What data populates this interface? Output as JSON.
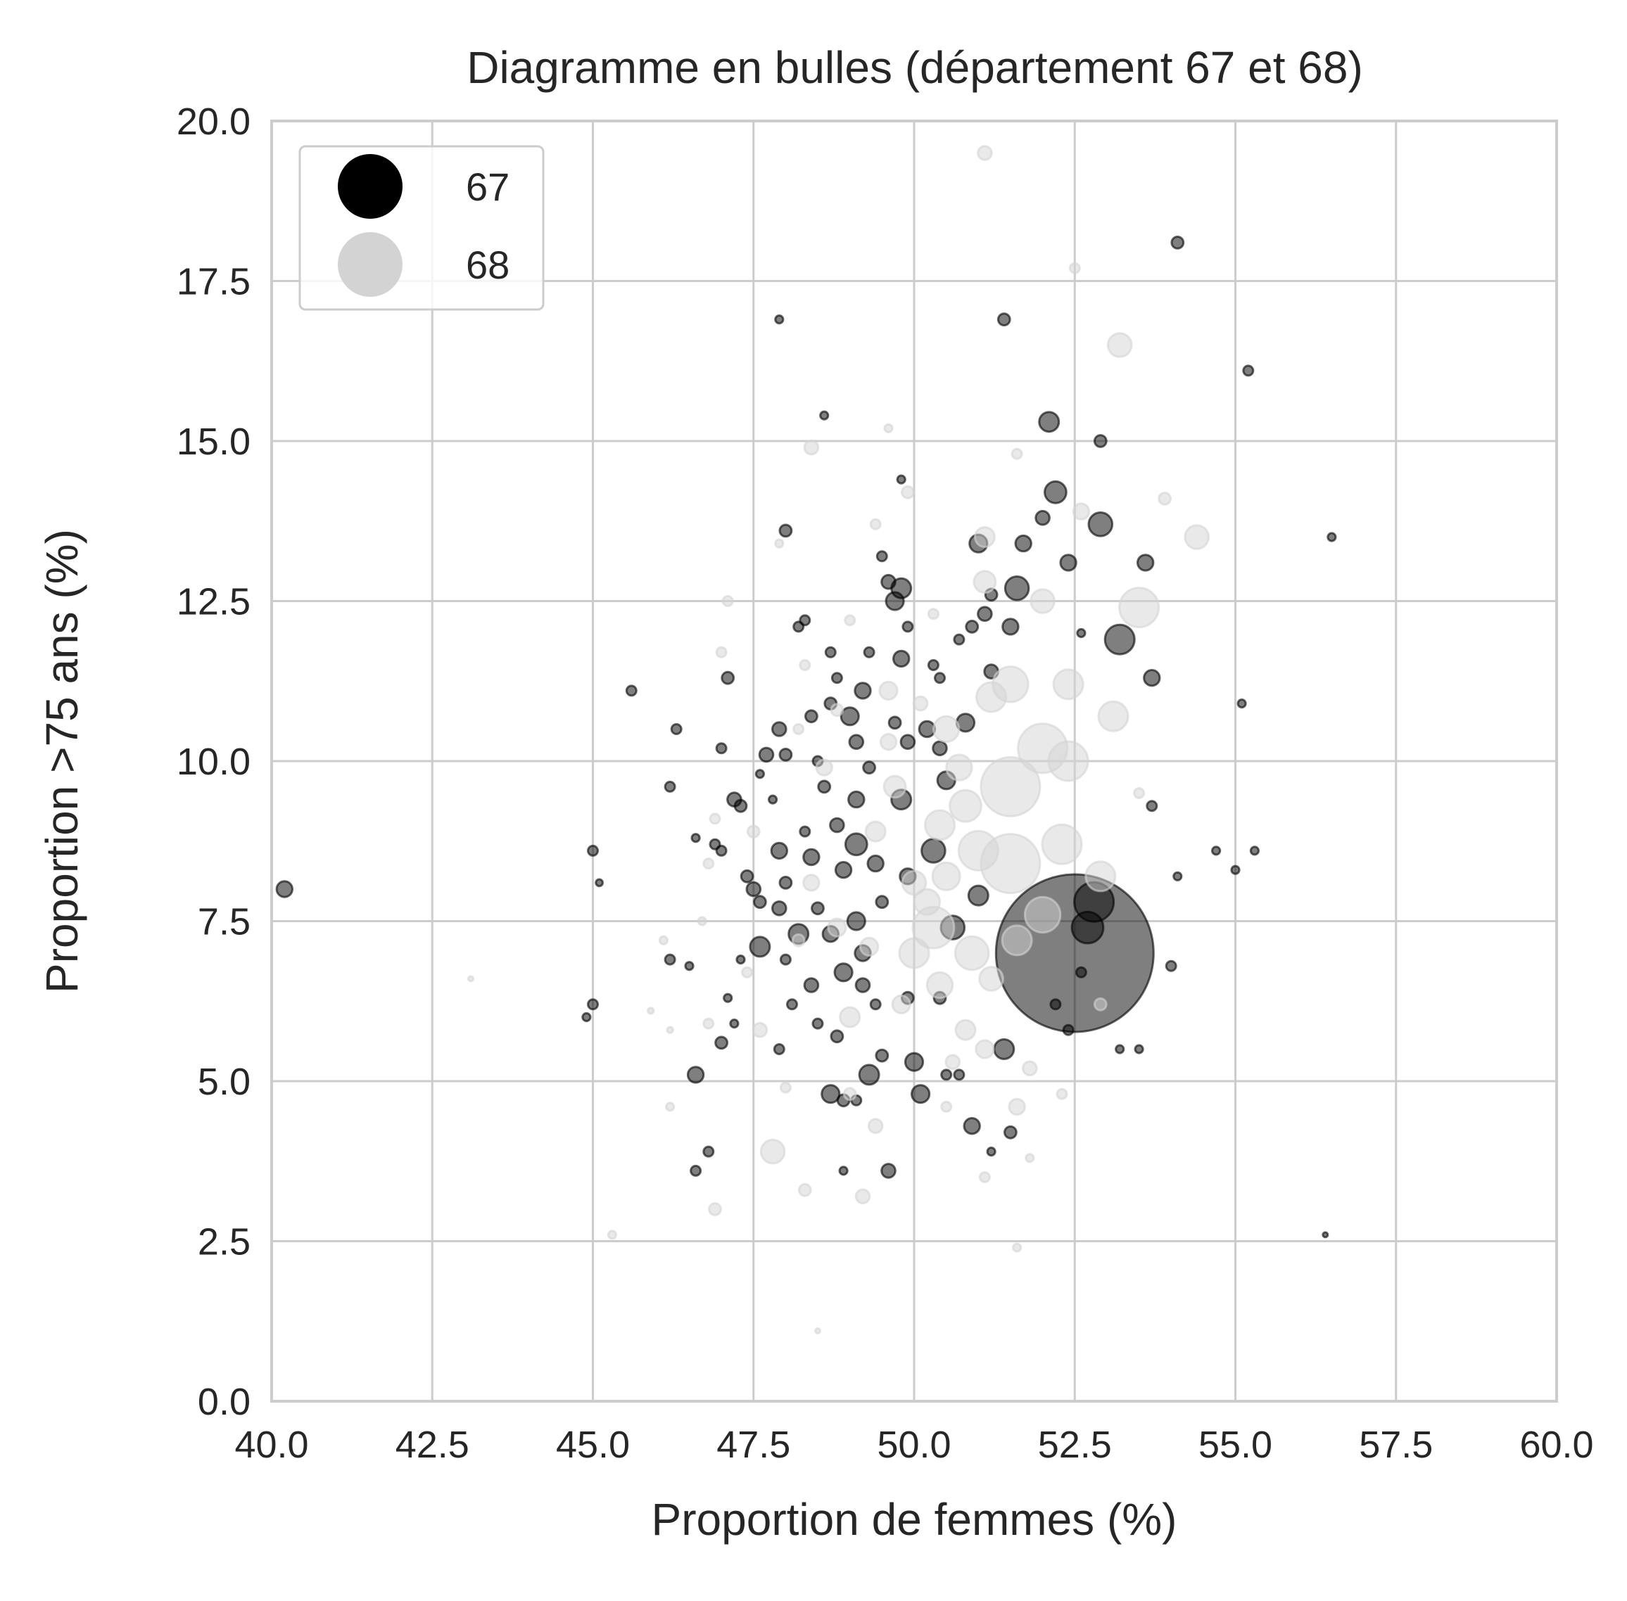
{
  "chart_data": {
    "type": "scatter",
    "title": "Diagramme en bulles (département 67 et 68)",
    "xlabel": "Proportion de femmes (%)",
    "ylabel": "Proportion >75 ans (%)",
    "xlim": [
      40.0,
      60.0
    ],
    "ylim": [
      0.0,
      20.0
    ],
    "xticks": [
      "40.0",
      "42.5",
      "45.0",
      "47.5",
      "50.0",
      "52.5",
      "55.0",
      "57.5",
      "60.0"
    ],
    "yticks": [
      "0.0",
      "2.5",
      "5.0",
      "7.5",
      "10.0",
      "12.5",
      "15.0",
      "17.5",
      "20.0"
    ],
    "grid": true,
    "legend_position": "top-left",
    "bubble_size_legend": false,
    "series": [
      {
        "name": "67",
        "color": "#000000",
        "opacity": 0.5,
        "points": [
          [
            40.2,
            8.0,
            1.6
          ],
          [
            45.0,
            8.6,
            1.0
          ],
          [
            45.1,
            8.1,
            0.7
          ],
          [
            45.0,
            6.2,
            1.0
          ],
          [
            44.9,
            6.0,
            0.8
          ],
          [
            45.6,
            11.1,
            1.0
          ],
          [
            46.2,
            9.6,
            1.0
          ],
          [
            46.3,
            10.5,
            1.0
          ],
          [
            46.2,
            6.9,
            1.0
          ],
          [
            46.5,
            6.8,
            0.8
          ],
          [
            46.6,
            8.8,
            0.8
          ],
          [
            46.6,
            3.6,
            1.0
          ],
          [
            46.6,
            5.1,
            1.6
          ],
          [
            46.8,
            3.9,
            1.0
          ],
          [
            46.9,
            8.7,
            1.0
          ],
          [
            47.0,
            8.6,
            1.0
          ],
          [
            47.0,
            10.2,
            1.0
          ],
          [
            47.1,
            11.3,
            1.2
          ],
          [
            47.2,
            9.4,
            1.4
          ],
          [
            47.3,
            9.3,
            1.2
          ],
          [
            47.1,
            6.3,
            0.8
          ],
          [
            47.2,
            5.9,
            0.8
          ],
          [
            47.0,
            5.6,
            1.2
          ],
          [
            47.3,
            6.9,
            0.8
          ],
          [
            47.4,
            8.2,
            1.2
          ],
          [
            47.5,
            8.0,
            1.4
          ],
          [
            47.6,
            7.8,
            1.2
          ],
          [
            47.6,
            7.1,
            2.0
          ],
          [
            47.7,
            10.1,
            1.4
          ],
          [
            47.6,
            9.8,
            0.8
          ],
          [
            47.9,
            16.9,
            0.8
          ],
          [
            48.0,
            13.6,
            1.2
          ],
          [
            47.9,
            10.5,
            1.4
          ],
          [
            48.0,
            10.1,
            1.2
          ],
          [
            47.8,
            9.4,
            0.8
          ],
          [
            47.9,
            8.6,
            1.6
          ],
          [
            48.0,
            8.1,
            1.2
          ],
          [
            47.9,
            7.7,
            1.4
          ],
          [
            48.0,
            6.9,
            1.0
          ],
          [
            47.9,
            5.5,
            1.0
          ],
          [
            48.1,
            6.2,
            1.0
          ],
          [
            48.2,
            7.3,
            2.0
          ],
          [
            48.2,
            12.1,
            1.0
          ],
          [
            48.3,
            12.2,
            1.0
          ],
          [
            48.4,
            10.7,
            1.2
          ],
          [
            48.5,
            10.0,
            1.0
          ],
          [
            48.6,
            9.6,
            1.2
          ],
          [
            48.4,
            8.5,
            1.6
          ],
          [
            48.3,
            8.9,
            1.0
          ],
          [
            48.5,
            7.7,
            1.2
          ],
          [
            48.4,
            6.5,
            1.4
          ],
          [
            48.5,
            5.9,
            1.0
          ],
          [
            48.6,
            15.4,
            0.8
          ],
          [
            48.7,
            11.7,
            1.0
          ],
          [
            48.8,
            11.3,
            1.0
          ],
          [
            48.7,
            10.9,
            1.2
          ],
          [
            48.8,
            9.0,
            1.4
          ],
          [
            48.9,
            8.3,
            1.6
          ],
          [
            48.7,
            7.3,
            1.6
          ],
          [
            48.9,
            6.7,
            1.8
          ],
          [
            48.8,
            5.7,
            1.2
          ],
          [
            48.7,
            4.8,
            1.8
          ],
          [
            48.9,
            4.7,
            1.2
          ],
          [
            48.9,
            3.6,
            0.8
          ],
          [
            49.0,
            10.7,
            1.8
          ],
          [
            49.1,
            10.3,
            1.4
          ],
          [
            49.1,
            9.4,
            1.6
          ],
          [
            49.1,
            8.7,
            2.2
          ],
          [
            49.1,
            7.5,
            1.8
          ],
          [
            49.2,
            7.0,
            1.6
          ],
          [
            49.2,
            6.5,
            1.4
          ],
          [
            49.1,
            4.7,
            1.0
          ],
          [
            49.2,
            11.1,
            1.6
          ],
          [
            49.3,
            11.7,
            1.0
          ],
          [
            49.3,
            9.9,
            1.2
          ],
          [
            49.4,
            8.4,
            1.6
          ],
          [
            49.5,
            7.8,
            1.2
          ],
          [
            49.4,
            6.2,
            1.0
          ],
          [
            49.3,
            5.1,
            2.0
          ],
          [
            49.5,
            5.4,
            1.2
          ],
          [
            49.6,
            3.6,
            1.4
          ],
          [
            49.6,
            12.8,
            1.4
          ],
          [
            49.7,
            12.5,
            1.8
          ],
          [
            49.5,
            13.2,
            1.0
          ],
          [
            49.8,
            14.4,
            0.8
          ],
          [
            49.8,
            12.7,
            2.0
          ],
          [
            49.9,
            12.1,
            1.0
          ],
          [
            49.8,
            11.6,
            1.6
          ],
          [
            49.7,
            10.6,
            1.2
          ],
          [
            49.9,
            10.3,
            1.4
          ],
          [
            49.8,
            9.4,
            2.0
          ],
          [
            49.9,
            8.2,
            1.6
          ],
          [
            49.9,
            6.3,
            1.2
          ],
          [
            50.0,
            5.3,
            1.8
          ],
          [
            50.1,
            4.8,
            1.8
          ],
          [
            50.3,
            11.5,
            1.0
          ],
          [
            50.4,
            11.3,
            1.0
          ],
          [
            50.2,
            10.5,
            1.6
          ],
          [
            50.4,
            10.2,
            1.4
          ],
          [
            50.5,
            9.7,
            1.8
          ],
          [
            50.4,
            6.3,
            1.2
          ],
          [
            50.5,
            5.1,
            1.0
          ],
          [
            50.7,
            11.9,
            1.0
          ],
          [
            50.9,
            12.1,
            1.2
          ],
          [
            50.8,
            10.6,
            1.8
          ],
          [
            50.7,
            5.1,
            1.0
          ],
          [
            50.9,
            4.3,
            1.6
          ],
          [
            51.0,
            13.4,
            1.8
          ],
          [
            51.1,
            12.3,
            1.4
          ],
          [
            51.2,
            12.6,
            1.2
          ],
          [
            51.2,
            11.4,
            1.4
          ],
          [
            51.2,
            3.9,
            0.8
          ],
          [
            51.4,
            16.9,
            1.2
          ],
          [
            51.5,
            12.1,
            1.6
          ],
          [
            51.6,
            12.7,
            2.4
          ],
          [
            51.7,
            13.4,
            1.6
          ],
          [
            51.4,
            5.5,
            2.0
          ],
          [
            51.5,
            4.2,
            1.2
          ],
          [
            52.0,
            13.8,
            1.4
          ],
          [
            52.2,
            14.2,
            2.2
          ],
          [
            52.1,
            15.3,
            2.0
          ],
          [
            52.2,
            6.2,
            1.0
          ],
          [
            52.4,
            13.1,
            1.6
          ],
          [
            52.4,
            5.8,
            1.0
          ],
          [
            52.6,
            12.0,
            0.8
          ],
          [
            52.6,
            6.7,
            1.0
          ],
          [
            52.9,
            13.7,
            2.4
          ],
          [
            52.9,
            15.0,
            1.2
          ],
          [
            53.2,
            11.9,
            3.0
          ],
          [
            53.6,
            13.1,
            1.6
          ],
          [
            53.7,
            11.3,
            1.6
          ],
          [
            53.7,
            9.3,
            1.0
          ],
          [
            53.2,
            5.5,
            0.8
          ],
          [
            53.5,
            5.5,
            0.8
          ],
          [
            54.1,
            18.1,
            1.2
          ],
          [
            54.1,
            8.2,
            0.8
          ],
          [
            54.0,
            6.8,
            1.0
          ],
          [
            54.7,
            8.6,
            0.8
          ],
          [
            55.0,
            8.3,
            0.8
          ],
          [
            55.1,
            10.9,
            0.8
          ],
          [
            55.2,
            16.1,
            1.0
          ],
          [
            55.3,
            8.6,
            0.8
          ],
          [
            56.4,
            2.6,
            0.5
          ],
          [
            56.5,
            13.5,
            0.8
          ],
          [
            52.5,
            7.0,
            16.0
          ],
          [
            52.8,
            7.8,
            4.0
          ],
          [
            52.7,
            7.4,
            3.2
          ],
          [
            50.6,
            7.4,
            2.4
          ],
          [
            50.3,
            8.6,
            2.4
          ],
          [
            51.0,
            7.9,
            2.0
          ]
        ]
      },
      {
        "name": "68",
        "color": "#d3d3d3",
        "opacity": 0.5,
        "points": [
          [
            51.1,
            19.5,
            1.4
          ],
          [
            52.5,
            17.7,
            1.0
          ],
          [
            53.2,
            16.5,
            2.4
          ],
          [
            48.4,
            14.9,
            1.4
          ],
          [
            49.6,
            15.2,
            0.8
          ],
          [
            51.6,
            14.8,
            1.0
          ],
          [
            49.9,
            14.2,
            1.2
          ],
          [
            53.9,
            14.1,
            1.2
          ],
          [
            54.4,
            13.5,
            2.4
          ],
          [
            52.6,
            13.9,
            1.6
          ],
          [
            49.4,
            13.7,
            1.0
          ],
          [
            47.9,
            13.4,
            0.8
          ],
          [
            51.1,
            13.5,
            2.0
          ],
          [
            52.0,
            12.5,
            2.4
          ],
          [
            53.5,
            12.4,
            4.0
          ],
          [
            51.1,
            12.8,
            2.2
          ],
          [
            47.1,
            12.5,
            1.0
          ],
          [
            47.0,
            11.7,
            1.0
          ],
          [
            48.3,
            11.5,
            1.0
          ],
          [
            49.6,
            11.1,
            1.8
          ],
          [
            50.5,
            10.5,
            2.6
          ],
          [
            51.2,
            11.0,
            3.0
          ],
          [
            51.5,
            11.2,
            3.6
          ],
          [
            52.4,
            11.2,
            3.0
          ],
          [
            53.1,
            10.7,
            3.0
          ],
          [
            52.0,
            10.2,
            5.0
          ],
          [
            52.4,
            10.0,
            4.0
          ],
          [
            51.5,
            9.6,
            6.0
          ],
          [
            50.8,
            9.3,
            3.2
          ],
          [
            50.4,
            9.0,
            3.0
          ],
          [
            51.0,
            8.6,
            4.0
          ],
          [
            51.5,
            8.4,
            6.0
          ],
          [
            52.3,
            8.7,
            4.0
          ],
          [
            52.9,
            8.2,
            3.0
          ],
          [
            50.3,
            7.4,
            4.2
          ],
          [
            50.0,
            7.0,
            3.0
          ],
          [
            50.4,
            6.5,
            2.6
          ],
          [
            51.2,
            6.6,
            2.4
          ],
          [
            50.8,
            5.8,
            2.0
          ],
          [
            51.1,
            5.5,
            1.8
          ],
          [
            50.6,
            5.3,
            1.4
          ],
          [
            50.5,
            4.6,
            1.0
          ],
          [
            51.6,
            4.6,
            1.6
          ],
          [
            51.1,
            3.5,
            1.0
          ],
          [
            51.8,
            3.8,
            0.8
          ],
          [
            51.6,
            2.4,
            0.8
          ],
          [
            49.4,
            4.3,
            1.4
          ],
          [
            49.0,
            4.8,
            1.2
          ],
          [
            49.2,
            3.2,
            1.4
          ],
          [
            48.3,
            3.3,
            1.2
          ],
          [
            47.8,
            3.9,
            2.4
          ],
          [
            46.9,
            3.0,
            1.2
          ],
          [
            46.2,
            4.6,
            0.8
          ],
          [
            45.3,
            2.6,
            0.8
          ],
          [
            43.1,
            6.6,
            0.5
          ],
          [
            48.5,
            1.1,
            0.5
          ],
          [
            45.9,
            6.1,
            0.6
          ],
          [
            46.1,
            7.2,
            0.8
          ],
          [
            46.2,
            5.8,
            0.6
          ],
          [
            46.7,
            7.5,
            0.8
          ],
          [
            46.8,
            5.9,
            1.0
          ],
          [
            46.8,
            8.4,
            1.0
          ],
          [
            46.9,
            9.1,
            1.0
          ],
          [
            47.4,
            6.7,
            1.0
          ],
          [
            47.5,
            8.9,
            1.2
          ],
          [
            47.6,
            5.8,
            1.4
          ],
          [
            48.0,
            4.9,
            1.0
          ],
          [
            48.2,
            7.2,
            1.2
          ],
          [
            48.4,
            8.1,
            1.6
          ],
          [
            48.6,
            9.9,
            1.6
          ],
          [
            48.8,
            7.4,
            1.8
          ],
          [
            49.0,
            6.0,
            2.0
          ],
          [
            49.3,
            7.1,
            1.8
          ],
          [
            49.4,
            8.9,
            2.0
          ],
          [
            49.7,
            9.6,
            2.2
          ],
          [
            49.8,
            6.2,
            1.8
          ],
          [
            50.0,
            8.1,
            2.4
          ],
          [
            50.2,
            7.8,
            2.6
          ],
          [
            50.5,
            8.2,
            2.8
          ],
          [
            49.6,
            10.3,
            1.6
          ],
          [
            50.1,
            10.9,
            1.4
          ],
          [
            48.8,
            10.8,
            1.2
          ],
          [
            48.2,
            10.5,
            1.0
          ],
          [
            49.0,
            12.2,
            1.0
          ],
          [
            50.3,
            12.3,
            1.0
          ],
          [
            51.6,
            7.2,
            3.0
          ],
          [
            52.0,
            7.6,
            3.6
          ],
          [
            51.8,
            5.2,
            1.4
          ],
          [
            52.3,
            4.8,
            1.0
          ],
          [
            52.9,
            6.2,
            1.2
          ],
          [
            53.5,
            9.5,
            1.0
          ],
          [
            50.9,
            7.0,
            3.4
          ],
          [
            50.7,
            9.9,
            2.6
          ]
        ]
      }
    ]
  },
  "legend": {
    "items": [
      {
        "label": "67",
        "color": "#000000"
      },
      {
        "label": "68",
        "color": "#d3d3d3"
      }
    ]
  }
}
